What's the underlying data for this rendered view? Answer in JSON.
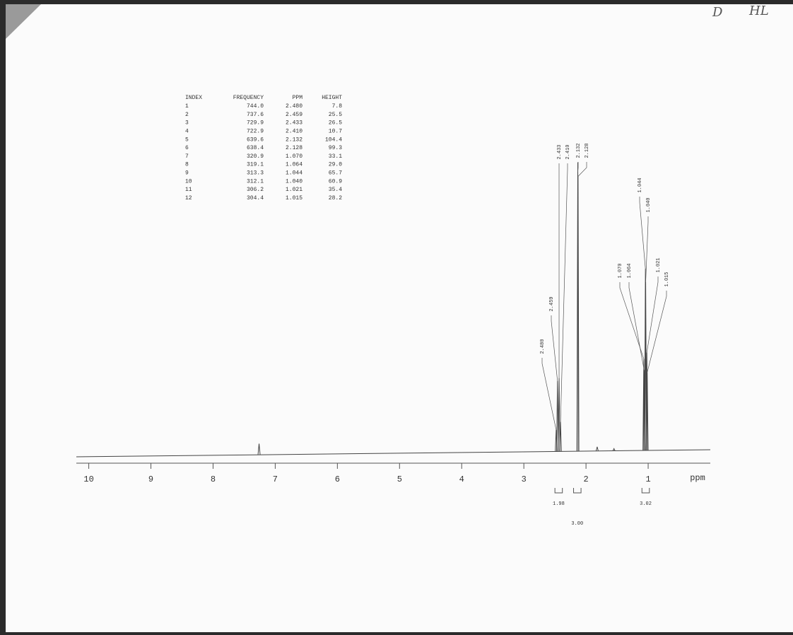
{
  "peak_table": {
    "headers": [
      "INDEX",
      "FREQUENCY",
      "PPM",
      "HEIGHT"
    ],
    "rows": [
      [
        "1",
        "744.0",
        "2.480",
        "7.8"
      ],
      [
        "2",
        "737.6",
        "2.459",
        "25.5"
      ],
      [
        "3",
        "729.9",
        "2.433",
        "26.5"
      ],
      [
        "4",
        "722.9",
        "2.410",
        "10.7"
      ],
      [
        "5",
        "639.6",
        "2.132",
        "104.4"
      ],
      [
        "6",
        "638.4",
        "2.128",
        "99.3"
      ],
      [
        "7",
        "320.9",
        "1.070",
        "33.1"
      ],
      [
        "8",
        "319.1",
        "1.064",
        "29.0"
      ],
      [
        "9",
        "313.3",
        "1.044",
        "65.7"
      ],
      [
        "10",
        "312.1",
        "1.040",
        "60.9"
      ],
      [
        "11",
        "306.2",
        "1.021",
        "35.4"
      ],
      [
        "12",
        "304.4",
        "1.015",
        "28.2"
      ]
    ]
  },
  "annotations": [
    "D",
    "HL"
  ],
  "chart_data": {
    "type": "nmr",
    "x_label": "ppm",
    "xlim": [
      10.2,
      0
    ],
    "xticks": [
      10,
      9,
      8,
      7,
      6,
      5,
      4,
      3,
      2,
      1
    ],
    "ylim": [
      0,
      115
    ],
    "color": "#444444",
    "peaks": {
      "x": [
        2.48,
        2.459,
        2.433,
        2.41,
        2.132,
        2.128,
        1.07,
        1.064,
        1.044,
        1.04,
        1.021,
        1.015
      ],
      "values": [
        7.8,
        25.5,
        26.5,
        10.7,
        104.4,
        99.3,
        33.1,
        29.0,
        65.7,
        60.9,
        35.4,
        28.2
      ],
      "value_labels": [
        "2.480",
        "2.459",
        "2.433",
        "2.410",
        "2.132",
        "2.128",
        "1.070",
        "1.064",
        "1.044",
        "1.040",
        "1.021",
        "1.015"
      ]
    },
    "minor_peaks": {
      "x": [
        7.26,
        1.82,
        1.55
      ],
      "values": [
        4,
        1.5,
        0.8
      ]
    },
    "integrals": {
      "ranges": [
        [
          2.5,
          2.38
        ],
        [
          2.2,
          2.08
        ],
        [
          1.1,
          0.98
        ]
      ],
      "values": [
        1.98,
        3,
        3.02
      ],
      "value_labels": [
        "1.98",
        "3.00",
        "3.02"
      ]
    }
  }
}
